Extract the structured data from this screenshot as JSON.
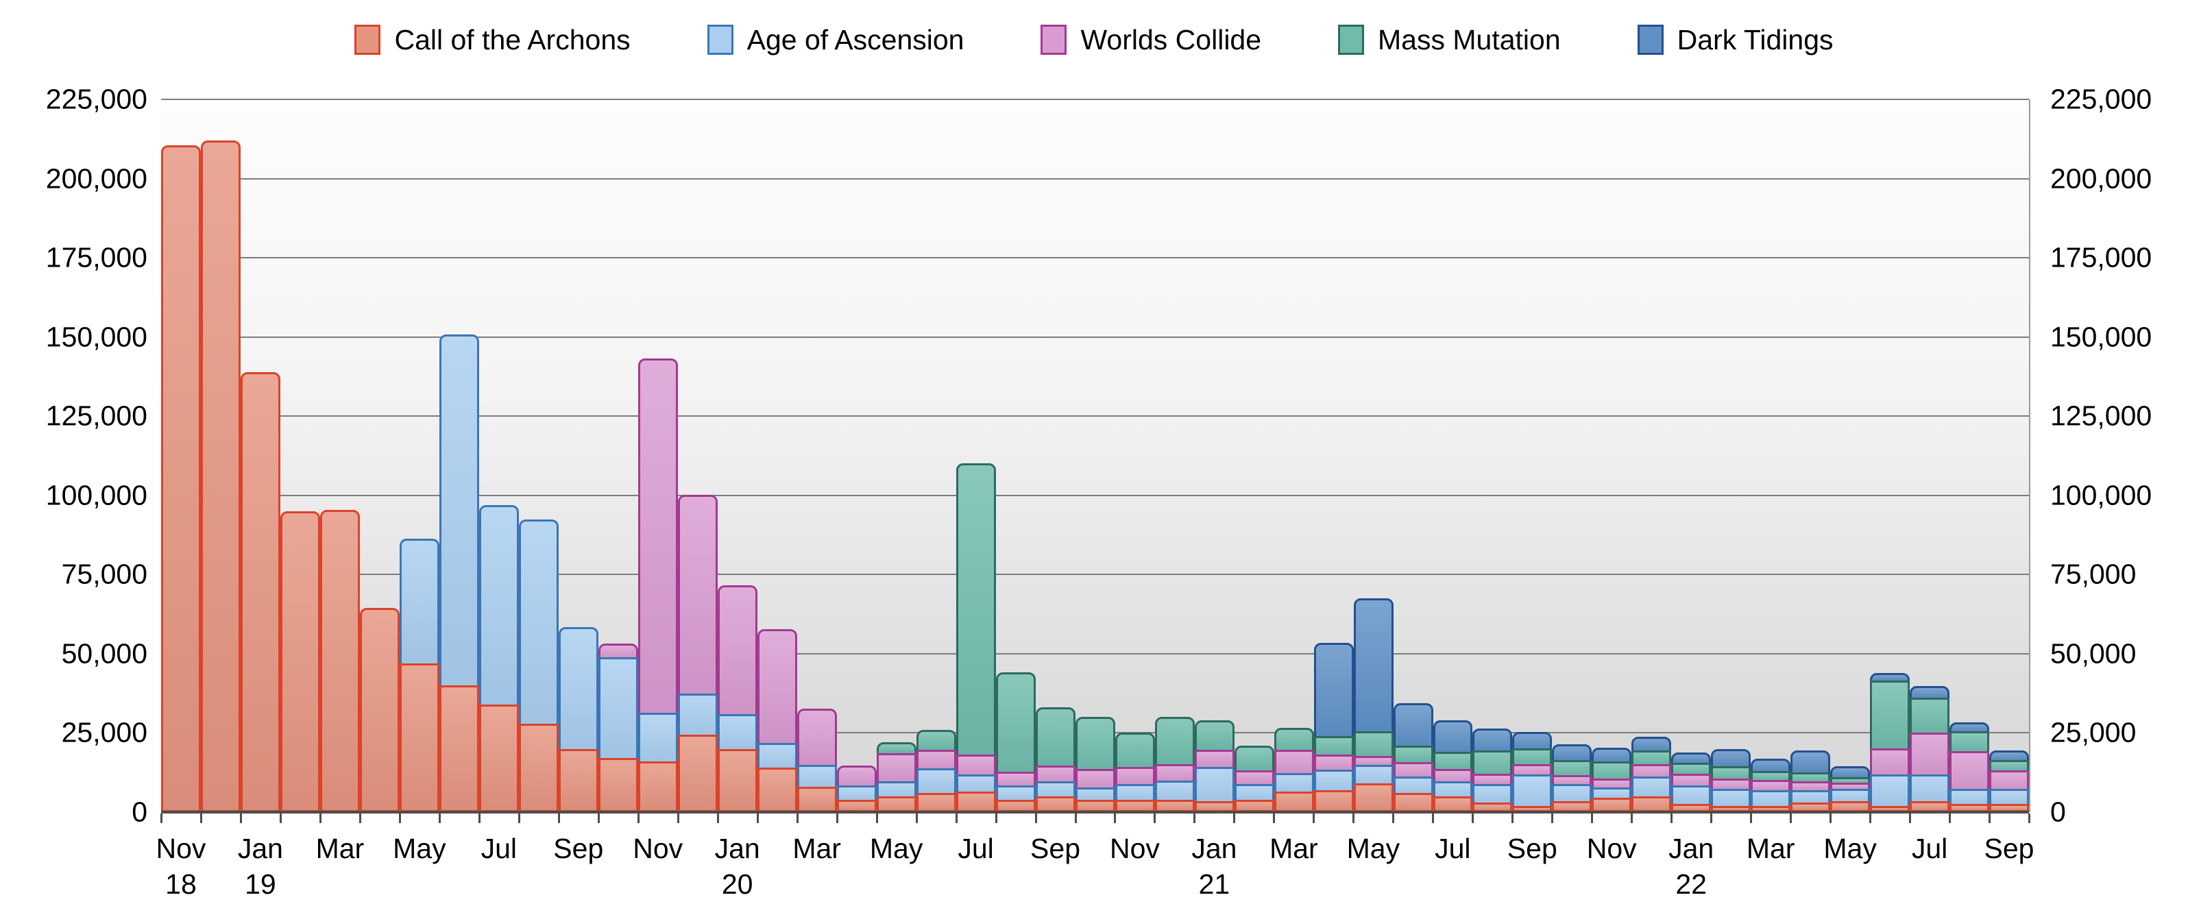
{
  "legend": {
    "items": [
      {
        "id": "cota",
        "label": "Call of the Archons",
        "fill": "#E59480",
        "stroke": "#D9442B"
      },
      {
        "id": "aoa",
        "label": "Age of Ascension",
        "fill": "#A9CEF0",
        "stroke": "#3C76B4"
      },
      {
        "id": "wc",
        "label": "Worlds Collide",
        "fill": "#D99BD1",
        "stroke": "#A23A92"
      },
      {
        "id": "mm",
        "label": "Mass Mutation",
        "fill": "#6FBCAC",
        "stroke": "#2E6A5F"
      },
      {
        "id": "dt",
        "label": "Dark Tidings",
        "fill": "#5E90C6",
        "stroke": "#24508E"
      }
    ]
  },
  "chart_data": {
    "type": "bar",
    "stacked": true,
    "grid": true,
    "legend_position": "top",
    "ylim": [
      0,
      225000
    ],
    "ytick_step": 25000,
    "ytick_labels": [
      "0",
      "25,000",
      "50,000",
      "75,000",
      "100,000",
      "125,000",
      "150,000",
      "175,000",
      "200,000",
      "225,000"
    ],
    "x": [
      "2018-11",
      "2018-12",
      "2019-01",
      "2019-02",
      "2019-03",
      "2019-04",
      "2019-05",
      "2019-06",
      "2019-07",
      "2019-08",
      "2019-09",
      "2019-10",
      "2019-11",
      "2019-12",
      "2020-01",
      "2020-02",
      "2020-03",
      "2020-04",
      "2020-05",
      "2020-06",
      "2020-07",
      "2020-08",
      "2020-09",
      "2020-10",
      "2020-11",
      "2020-12",
      "2021-01",
      "2021-02",
      "2021-03",
      "2021-04",
      "2021-05",
      "2021-06",
      "2021-07",
      "2021-08",
      "2021-09",
      "2021-10",
      "2021-11",
      "2021-12",
      "2022-01",
      "2022-02",
      "2022-03",
      "2022-04",
      "2022-05",
      "2022-06",
      "2022-07",
      "2022-08",
      "2022-09"
    ],
    "x_tick_labels": [
      {
        "index": 0,
        "month": "Nov",
        "year": "18"
      },
      {
        "index": 2,
        "month": "Jan",
        "year": "19"
      },
      {
        "index": 4,
        "month": "Mar"
      },
      {
        "index": 6,
        "month": "May"
      },
      {
        "index": 8,
        "month": "Jul"
      },
      {
        "index": 10,
        "month": "Sep"
      },
      {
        "index": 12,
        "month": "Nov"
      },
      {
        "index": 14,
        "month": "Jan",
        "year": "20"
      },
      {
        "index": 16,
        "month": "Mar"
      },
      {
        "index": 18,
        "month": "May"
      },
      {
        "index": 20,
        "month": "Jul"
      },
      {
        "index": 22,
        "month": "Sep"
      },
      {
        "index": 24,
        "month": "Nov"
      },
      {
        "index": 26,
        "month": "Jan",
        "year": "21"
      },
      {
        "index": 28,
        "month": "Mar"
      },
      {
        "index": 30,
        "month": "May"
      },
      {
        "index": 32,
        "month": "Jul"
      },
      {
        "index": 34,
        "month": "Sep"
      },
      {
        "index": 36,
        "month": "Nov"
      },
      {
        "index": 38,
        "month": "Jan",
        "year": "22"
      },
      {
        "index": 40,
        "month": "Mar"
      },
      {
        "index": 42,
        "month": "May"
      },
      {
        "index": 44,
        "month": "Jul"
      },
      {
        "index": 46,
        "month": "Sep"
      }
    ],
    "series": [
      {
        "id": "cota",
        "name": "Call of the Archons",
        "fill": "#E59480",
        "stroke": "#D9442B",
        "values": [
          210500,
          212000,
          139000,
          95000,
          95500,
          64500,
          47000,
          40000,
          34000,
          28000,
          20000,
          17000,
          16000,
          24500,
          20000,
          14000,
          8000,
          4000,
          5000,
          6000,
          6500,
          4000,
          5000,
          4000,
          4000,
          4000,
          3500,
          4000,
          6500,
          7000,
          9000,
          6000,
          5000,
          3000,
          2000,
          3500,
          4500,
          5000,
          2500,
          2000,
          2000,
          3000,
          3500,
          2000,
          3500,
          2500,
          2500
        ]
      },
      {
        "id": "aoa",
        "name": "Age of Ascension",
        "fill": "#A9CEF0",
        "stroke": "#3C76B4",
        "values": [
          0,
          0,
          0,
          0,
          0,
          0,
          40000,
          111500,
          63500,
          65000,
          39000,
          32500,
          16000,
          13500,
          11500,
          8500,
          7500,
          5000,
          5500,
          8500,
          6000,
          5000,
          5500,
          4500,
          5500,
          6500,
          11500,
          5500,
          6500,
          7000,
          6500,
          6000,
          5500,
          6500,
          10500,
          6000,
          4000,
          7000,
          6500,
          6000,
          5500,
          4500,
          4500,
          10500,
          9000,
          5500,
          5500
        ]
      },
      {
        "id": "wc",
        "name": "Worlds Collide",
        "fill": "#D99BD1",
        "stroke": "#A23A92",
        "values": [
          0,
          0,
          0,
          0,
          0,
          0,
          0,
          0,
          0,
          0,
          0,
          5000,
          112500,
          63500,
          41500,
          36500,
          18500,
          7000,
          9500,
          6500,
          7000,
          5000,
          5500,
          6500,
          6000,
          6000,
          6000,
          5000,
          8000,
          5500,
          3500,
          5000,
          4500,
          4000,
          4000,
          3500,
          3500,
          4500,
          4500,
          4000,
          4000,
          3500,
          2500,
          9000,
          14000,
          12500,
          6500
        ]
      },
      {
        "id": "mm",
        "name": "Mass Mutation",
        "fill": "#6FBCAC",
        "stroke": "#2E6A5F",
        "values": [
          0,
          0,
          0,
          0,
          0,
          0,
          0,
          0,
          0,
          0,
          0,
          0,
          0,
          0,
          0,
          0,
          0,
          0,
          4000,
          7000,
          92500,
          32000,
          19000,
          17000,
          11500,
          15500,
          10000,
          8500,
          7500,
          6500,
          8500,
          6000,
          6000,
          8000,
          5500,
          5500,
          6000,
          5000,
          4000,
          4500,
          3500,
          3500,
          2500,
          22000,
          11500,
          7000,
          4000
        ]
      },
      {
        "id": "dt",
        "name": "Dark Tidings",
        "fill": "#5E90C6",
        "stroke": "#24508E",
        "values": [
          0,
          0,
          0,
          0,
          0,
          0,
          0,
          0,
          0,
          0,
          0,
          0,
          0,
          0,
          0,
          0,
          0,
          0,
          0,
          0,
          0,
          0,
          0,
          0,
          0,
          0,
          0,
          0,
          0,
          30000,
          42500,
          14000,
          10500,
          7500,
          6000,
          5500,
          5000,
          5000,
          4000,
          6000,
          4500,
          7500,
          4000,
          3000,
          4500,
          3500,
          3500
        ]
      }
    ]
  }
}
